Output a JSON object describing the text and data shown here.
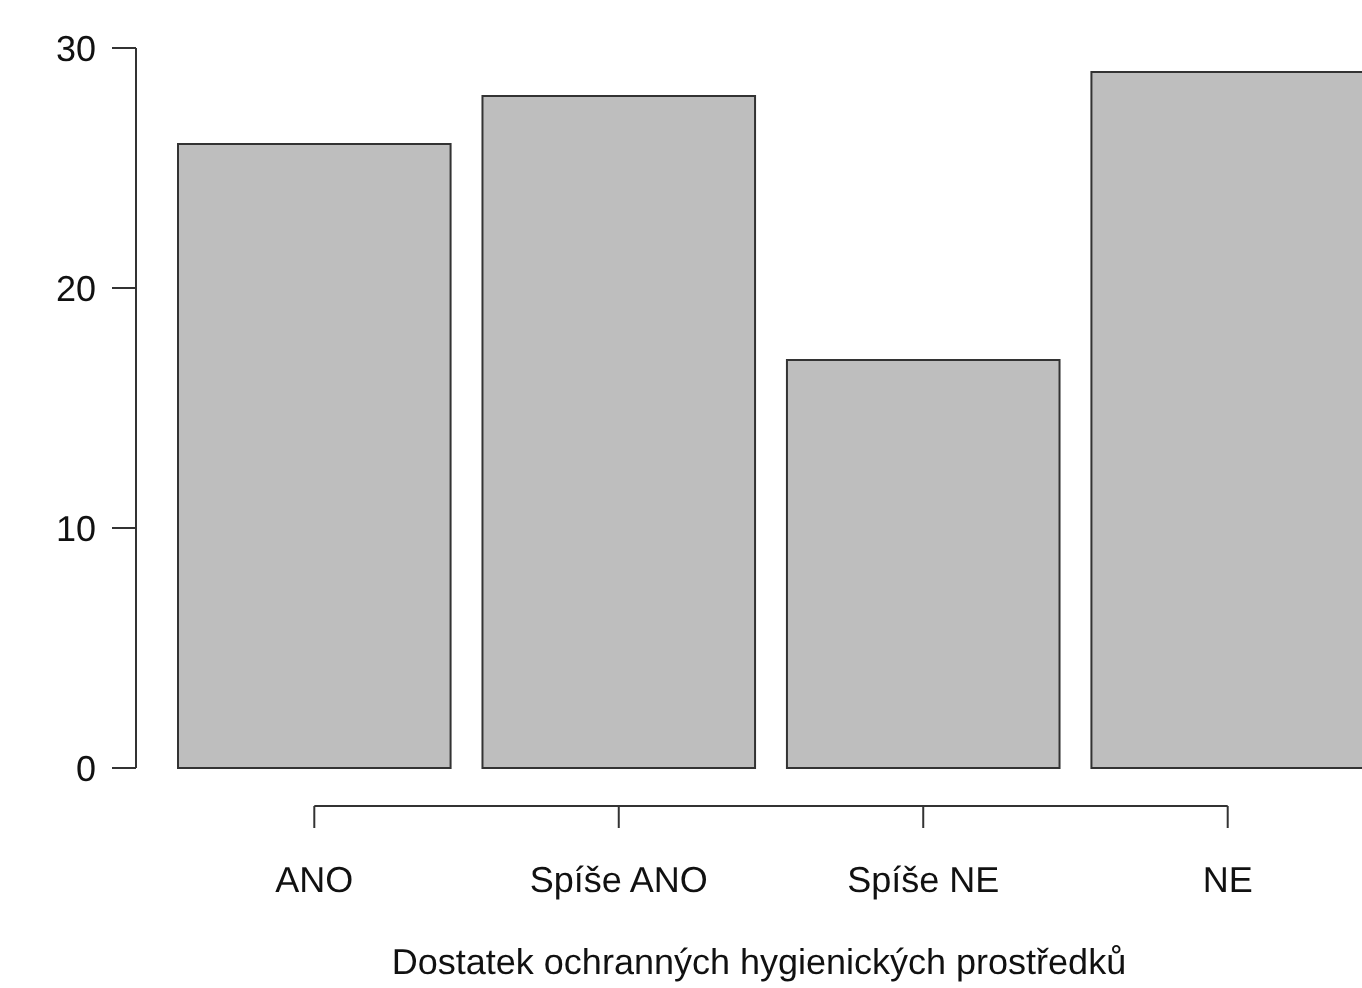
{
  "chart_data": {
    "type": "bar",
    "xlabel": "Dostatek ochranných hygienických prostředků",
    "categories": [
      "ANO",
      "Spíše ANO",
      "Spíše NE",
      "NE"
    ],
    "values": [
      26,
      28,
      17,
      29
    ],
    "color": "#bebebe",
    "ylim": [
      0,
      30
    ],
    "yticks": [
      0,
      10,
      20,
      30
    ],
    "grid": false
  }
}
